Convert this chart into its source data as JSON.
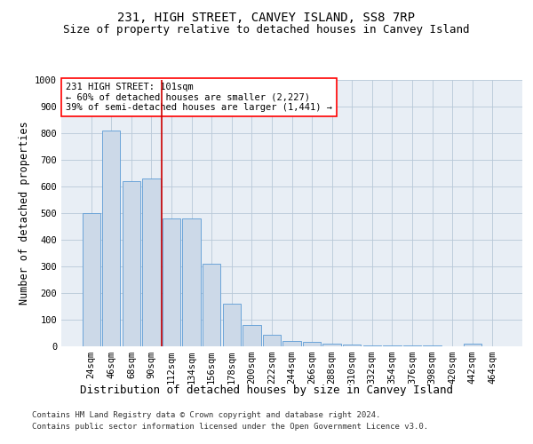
{
  "title": "231, HIGH STREET, CANVEY ISLAND, SS8 7RP",
  "subtitle": "Size of property relative to detached houses in Canvey Island",
  "xlabel": "Distribution of detached houses by size in Canvey Island",
  "ylabel": "Number of detached properties",
  "footer_line1": "Contains HM Land Registry data © Crown copyright and database right 2024.",
  "footer_line2": "Contains public sector information licensed under the Open Government Licence v3.0.",
  "categories": [
    "24sqm",
    "46sqm",
    "68sqm",
    "90sqm",
    "112sqm",
    "134sqm",
    "156sqm",
    "178sqm",
    "200sqm",
    "222sqm",
    "244sqm",
    "266sqm",
    "288sqm",
    "310sqm",
    "332sqm",
    "354sqm",
    "376sqm",
    "398sqm",
    "420sqm",
    "442sqm",
    "464sqm"
  ],
  "values": [
    500,
    810,
    620,
    630,
    480,
    480,
    310,
    160,
    80,
    42,
    20,
    16,
    10,
    7,
    5,
    3,
    2,
    2,
    1,
    10,
    1
  ],
  "bar_color": "#ccd9e8",
  "bar_edge_color": "#5b9bd5",
  "highlight_index": 4,
  "highlight_color": "#cc0000",
  "ylim": [
    0,
    1000
  ],
  "yticks": [
    0,
    100,
    200,
    300,
    400,
    500,
    600,
    700,
    800,
    900,
    1000
  ],
  "annotation_text": "231 HIGH STREET: 101sqm\n← 60% of detached houses are smaller (2,227)\n39% of semi-detached houses are larger (1,441) →",
  "bg_color": "#ffffff",
  "plot_bg_color": "#e8eef5",
  "grid_color": "#b8c8d8",
  "title_fontsize": 10,
  "subtitle_fontsize": 9,
  "axis_label_fontsize": 8.5,
  "tick_fontsize": 7.5,
  "annotation_fontsize": 7.5,
  "footer_fontsize": 6.5
}
